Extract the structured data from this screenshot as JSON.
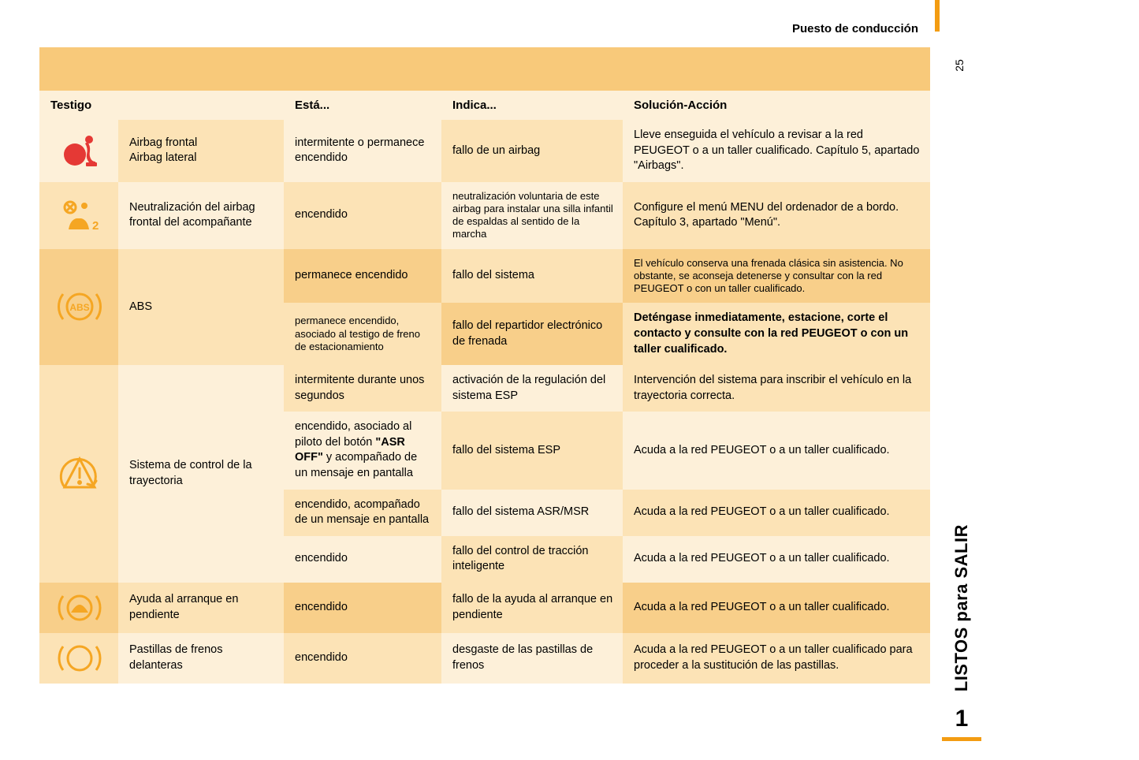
{
  "header": {
    "title": "Puesto de conducción"
  },
  "page_number": "25",
  "side": {
    "label": "LISTOS para SALIR",
    "chapter": "1"
  },
  "colors": {
    "accent": "#f39c12",
    "icon_red": "#e53935",
    "icon_orange": "#f5a623",
    "bg_light": "#fdf0d9",
    "bg_med": "#fce3b6",
    "bg_dark": "#f8cf8a",
    "banner": "#f8c97a"
  },
  "table": {
    "headers": {
      "testigo": "Testigo",
      "blank": "",
      "esta": "Está...",
      "indica": "Indica...",
      "solucion": "Solución-Acción"
    },
    "rows": [
      {
        "group": "airbag",
        "icon": "airbag-icon",
        "name": "Airbag frontal\nAirbag lateral",
        "subrows": [
          {
            "esta": "intermitente o permanece encendido",
            "indica": "fallo de un airbag",
            "solucion": "Lleve enseguida el vehículo a revisar a la red PEUGEOT o a un taller cualificado. Capítulo 5, apartado \"Airbags\"."
          }
        ]
      },
      {
        "group": "airbag-off",
        "icon": "airbag-off-icon",
        "name": "Neutralización del airbag frontal del acompañante",
        "subrows": [
          {
            "esta": "encendido",
            "indica": "neutralización voluntaria de este airbag para instalar una silla infantil de espaldas al sentido de la marcha",
            "indica_small": true,
            "solucion": "Configure el menú MENU del ordenador de a bordo. Capítulo 3, apartado \"Menú\"."
          }
        ]
      },
      {
        "group": "abs",
        "icon": "abs-icon",
        "name": "ABS",
        "subrows": [
          {
            "esta": "permanece encendido",
            "indica": "fallo del sistema",
            "solucion": "El vehículo conserva una frenada clásica sin asistencia. No obstante, se aconseja detenerse y consultar con la red PEUGEOT o con un taller cualificado.",
            "solucion_small": true
          },
          {
            "esta": "permanece encendido, asociado al testigo de freno de estacionamiento",
            "esta_small": true,
            "indica": "fallo del repartidor electrónico de frenada",
            "solucion": "Deténgase inmediatamente, estacione, corte el contacto y consulte con la red PEUGEOT o con un taller cualificado.",
            "solucion_bold": true
          }
        ]
      },
      {
        "group": "esp",
        "icon": "esp-icon",
        "name": "Sistema de control de la trayectoria",
        "subrows": [
          {
            "esta": "intermitente durante unos segundos",
            "indica": "activación de la regulación del sistema ESP",
            "solucion": "Intervención del sistema para inscribir el vehículo en la trayectoria correcta."
          },
          {
            "esta_html": "encendido, asociado al piloto del botón <b>\"ASR OFF\"</b> y acompañado de un mensaje en pantalla",
            "indica": "fallo del sistema ESP",
            "solucion": "Acuda a la red PEUGEOT o a un taller cualificado."
          },
          {
            "esta": "encendido, acompañado de un mensaje en pantalla",
            "indica": "fallo del sistema ASR/MSR",
            "solucion": "Acuda a la red PEUGEOT o a un taller cualificado."
          },
          {
            "esta": "encendido",
            "indica": "fallo del control de tracción inteligente",
            "solucion": "Acuda a la red PEUGEOT o a un taller cualificado."
          }
        ]
      },
      {
        "group": "hill",
        "icon": "hill-icon",
        "name": "Ayuda al arranque en pendiente",
        "subrows": [
          {
            "esta": "encendido",
            "indica": "fallo de la ayuda al arranque en pendiente",
            "solucion": "Acuda a la red PEUGEOT o a un taller cualificado."
          }
        ]
      },
      {
        "group": "brake",
        "icon": "brake-pads-icon",
        "name": "Pastillas de frenos delanteras",
        "subrows": [
          {
            "esta": "encendido",
            "indica": "desgaste de las pastillas de frenos",
            "solucion": "Acuda a la red PEUGEOT o a un taller cualificado para proceder a la sustitución de las pastillas."
          }
        ]
      }
    ]
  }
}
